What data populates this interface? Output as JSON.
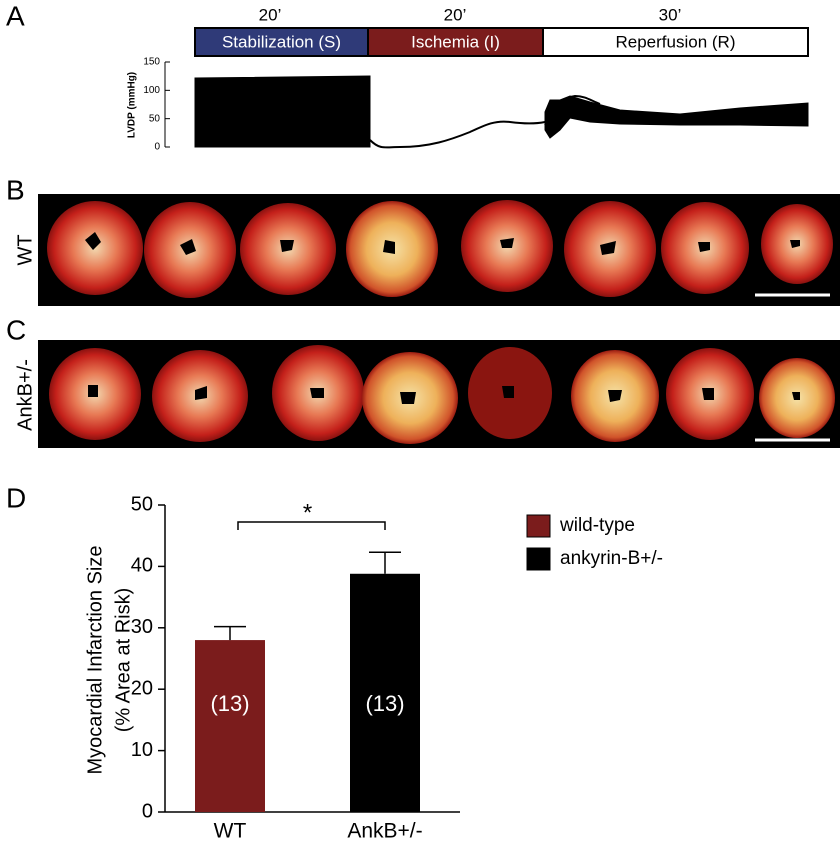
{
  "panels": [
    "A",
    "B",
    "C",
    "D"
  ],
  "protocol": {
    "durations": [
      "20’",
      "20’",
      "30’"
    ],
    "phases": [
      "Stabilization (S)",
      "Ischemia (I)",
      "Reperfusion (R)"
    ],
    "colors": [
      "#2f3a78",
      "#7b1c1c",
      "#ffffff"
    ]
  },
  "lvdp": {
    "ylabel": "LVDP (mmHg)",
    "ylim": [
      0,
      150
    ],
    "yticks": [
      0,
      50,
      100,
      150
    ]
  },
  "rows": [
    "WT",
    "AnkB+/-"
  ],
  "chart_data": {
    "type": "bar",
    "ylabel": [
      "Myocardial Infarction Size",
      "(% Area at Risk)"
    ],
    "categories": [
      "WT",
      "AnkB+/-"
    ],
    "series": [
      {
        "name": "wild-type",
        "color": "#7b1c1c",
        "values": [
          28,
          null
        ],
        "errors": [
          2.2,
          null
        ]
      },
      {
        "name": "ankyrin-B+/-",
        "color": "#000000",
        "values": [
          null,
          38.8
        ],
        "errors": [
          null,
          3.5
        ]
      }
    ],
    "n_labels": [
      "(13)",
      "(13)"
    ],
    "significance": "*",
    "ylim": [
      0,
      50
    ],
    "yticks": [
      0,
      10,
      20,
      30,
      40,
      50
    ]
  }
}
